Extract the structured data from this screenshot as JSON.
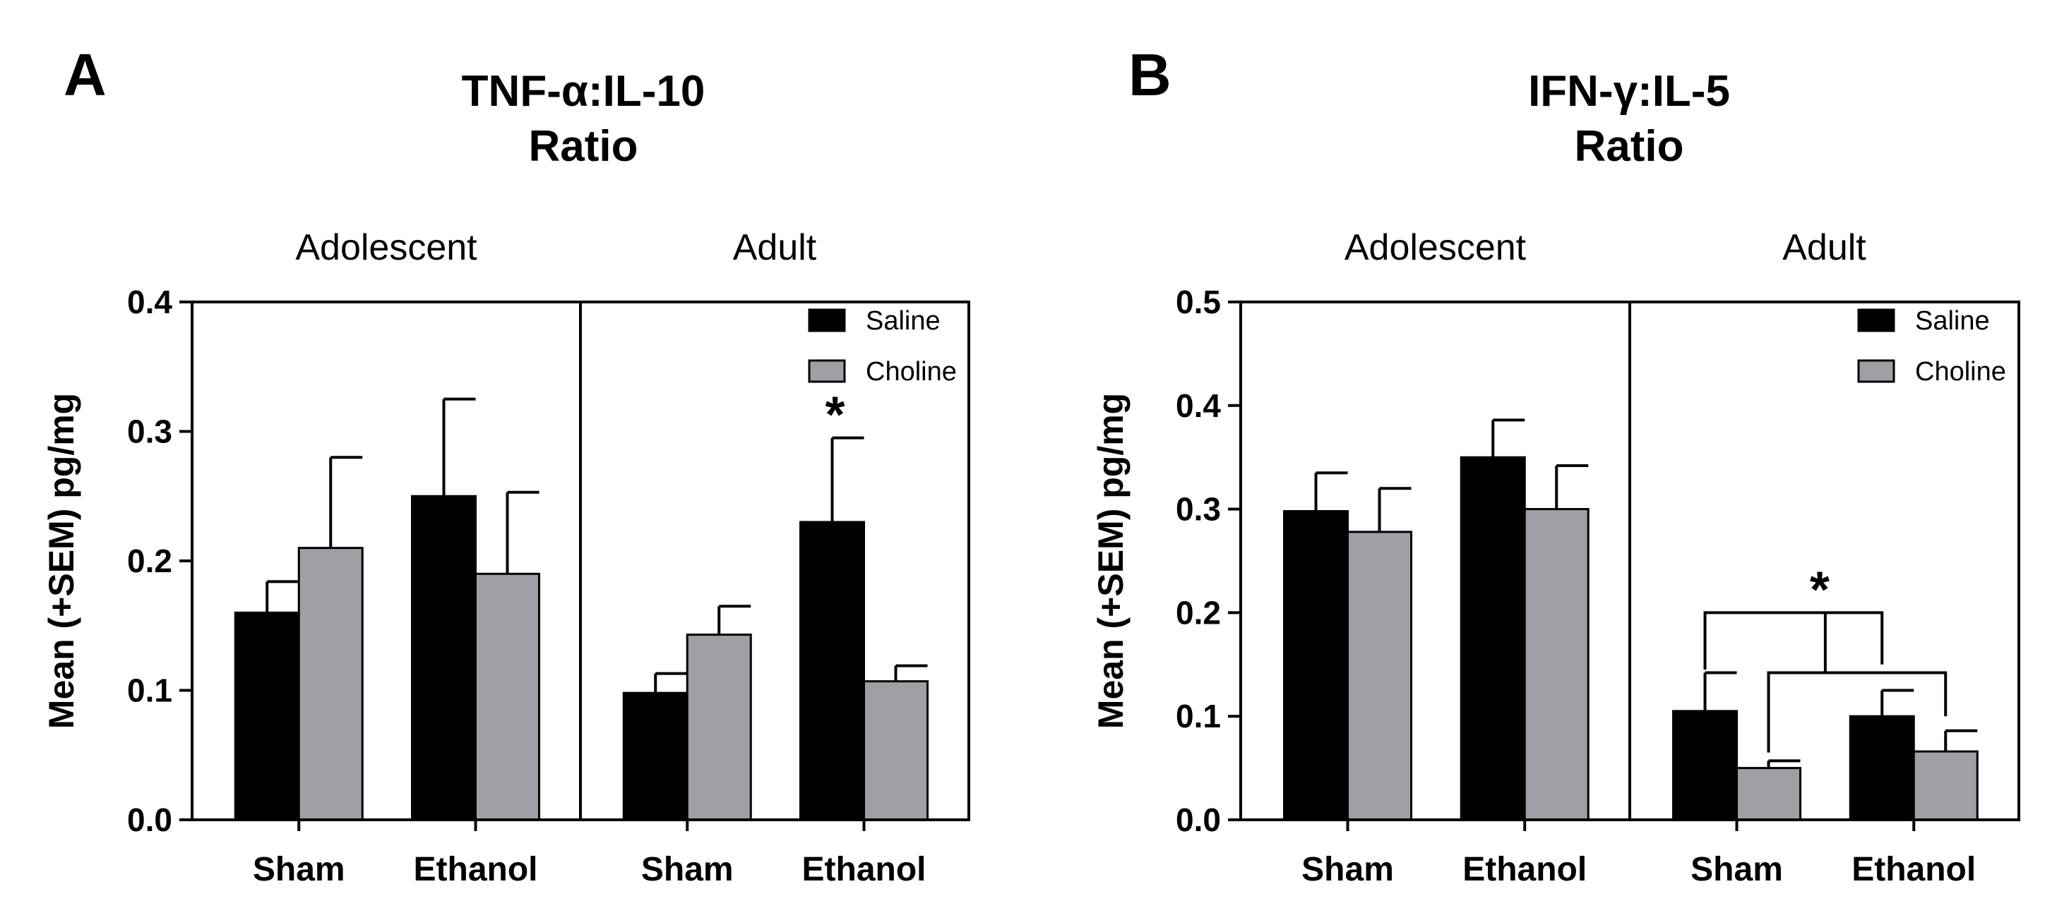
{
  "chart_data": [
    {
      "type": "bar",
      "panel_letter": "A",
      "title": [
        "TNF-α:IL-10",
        "Ratio"
      ],
      "ylabel": "Mean (+SEM) pg/mg",
      "ylim": [
        0,
        0.4
      ],
      "yticks": [
        "0.0",
        "0.1",
        "0.2",
        "0.3",
        "0.4"
      ],
      "groups": [
        "Adolescent",
        "Adult"
      ],
      "categories": [
        "Sham",
        "Ethanol",
        "Sham",
        "Ethanol"
      ],
      "legend": {
        "position": "top-right"
      },
      "series": [
        {
          "name": "Saline",
          "color": "#000000",
          "values": [
            0.16,
            0.25,
            0.098,
            0.23
          ],
          "sem": [
            0.024,
            0.075,
            0.015,
            0.065
          ]
        },
        {
          "name": "Choline",
          "color": "#a0a0a4",
          "values": [
            0.21,
            0.19,
            0.143,
            0.107
          ],
          "sem": [
            0.07,
            0.063,
            0.022,
            0.012
          ]
        }
      ],
      "annotations": [
        {
          "text": "*",
          "category_index": 3,
          "series": "Saline"
        }
      ]
    },
    {
      "type": "bar",
      "panel_letter": "B",
      "title": [
        "IFN-γ:IL-5",
        "Ratio"
      ],
      "ylabel": "Mean (+SEM) pg/mg",
      "ylim": [
        0,
        0.5
      ],
      "yticks": [
        "0.0",
        "0.1",
        "0.2",
        "0.3",
        "0.4",
        "0.5"
      ],
      "groups": [
        "Adolescent",
        "Adult"
      ],
      "categories": [
        "Sham",
        "Ethanol",
        "Sham",
        "Ethanol"
      ],
      "legend": {
        "position": "top-right"
      },
      "series": [
        {
          "name": "Saline",
          "color": "#000000",
          "values": [
            0.298,
            0.35,
            0.105,
            0.1
          ],
          "sem": [
            0.037,
            0.036,
            0.037,
            0.025
          ]
        },
        {
          "name": "Choline",
          "color": "#a0a0a4",
          "values": [
            0.278,
            0.3,
            0.05,
            0.066
          ],
          "sem": [
            0.042,
            0.042,
            0.007,
            0.02
          ]
        }
      ],
      "annotations": [
        {
          "text": "*",
          "type": "bracket",
          "group": "Adult"
        }
      ]
    }
  ]
}
